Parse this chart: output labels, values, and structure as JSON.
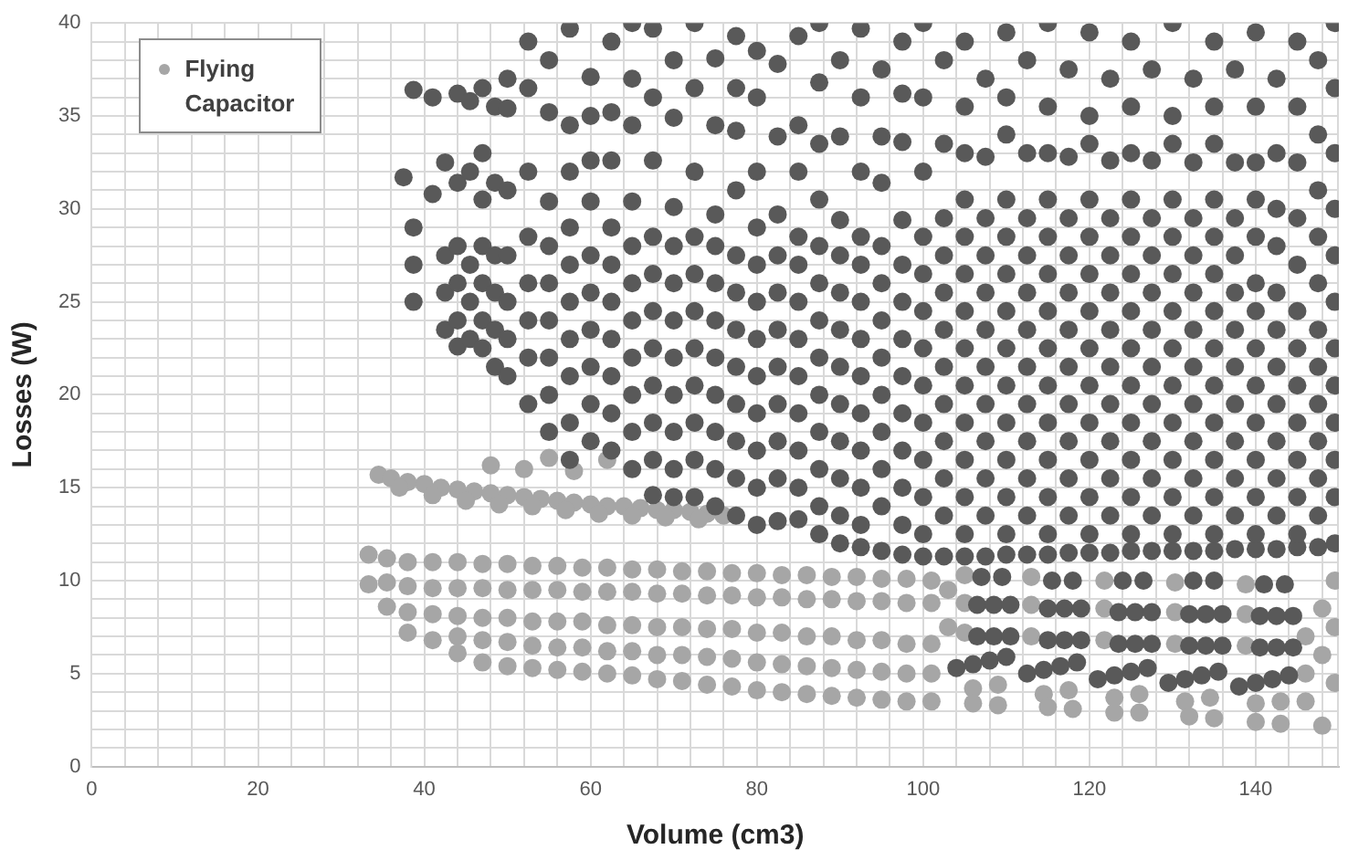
{
  "chart_data": {
    "type": "scatter",
    "xlabel": "Volume (cm3)",
    "ylabel": "Losses (W)",
    "xlim": [
      0,
      150
    ],
    "ylim": [
      0,
      40
    ],
    "xticks": [
      0,
      {
        "value": 4,
        "label": null
      },
      {
        "value": 8,
        "label": null
      },
      {
        "value": 12,
        "label": null
      },
      {
        "value": 16,
        "label": null
      },
      20,
      {
        "value": 24,
        "label": null
      },
      {
        "value": 28,
        "label": null
      },
      {
        "value": 32,
        "label": null
      },
      {
        "value": 36,
        "label": null
      },
      40,
      {
        "value": 44,
        "label": null
      },
      {
        "value": 48,
        "label": null
      },
      {
        "value": 52,
        "label": null
      },
      {
        "value": 56,
        "label": null
      },
      60,
      {
        "value": 64,
        "label": null
      },
      {
        "value": 68,
        "label": null
      },
      {
        "value": 72,
        "label": null
      },
      {
        "value": 76,
        "label": null
      },
      80,
      {
        "value": 84,
        "label": null
      },
      {
        "value": 88,
        "label": null
      },
      {
        "value": 92,
        "label": null
      },
      {
        "value": 96,
        "label": null
      },
      100,
      {
        "value": 104,
        "label": null
      },
      {
        "value": 108,
        "label": null
      },
      {
        "value": 112,
        "label": null
      },
      {
        "value": 116,
        "label": null
      },
      120,
      {
        "value": 124,
        "label": null
      },
      {
        "value": 128,
        "label": null
      },
      {
        "value": 132,
        "label": null
      },
      {
        "value": 136,
        "label": null
      },
      140,
      {
        "value": 144,
        "label": null
      },
      {
        "value": 148,
        "label": null
      }
    ],
    "yticks": [
      0,
      {
        "value": 1,
        "label": null
      },
      {
        "value": 2,
        "label": null
      },
      {
        "value": 3,
        "label": null
      },
      {
        "value": 4,
        "label": null
      },
      5,
      {
        "value": 6,
        "label": null
      },
      {
        "value": 7,
        "label": null
      },
      {
        "value": 8,
        "label": null
      },
      {
        "value": 9,
        "label": null
      },
      10,
      {
        "value": 11,
        "label": null
      },
      {
        "value": 12,
        "label": null
      },
      {
        "value": 13,
        "label": null
      },
      {
        "value": 14,
        "label": null
      },
      15,
      {
        "value": 16,
        "label": null
      },
      {
        "value": 17,
        "label": null
      },
      {
        "value": 18,
        "label": null
      },
      {
        "value": 19,
        "label": null
      },
      20,
      {
        "value": 21,
        "label": null
      },
      {
        "value": 22,
        "label": null
      },
      {
        "value": 23,
        "label": null
      },
      {
        "value": 24,
        "label": null
      },
      25,
      {
        "value": 26,
        "label": null
      },
      {
        "value": 27,
        "label": null
      },
      {
        "value": 28,
        "label": null
      },
      {
        "value": 29,
        "label": null
      },
      30,
      {
        "value": 31,
        "label": null
      },
      {
        "value": 32,
        "label": null
      },
      {
        "value": 33,
        "label": null
      },
      {
        "value": 34,
        "label": null
      },
      35,
      {
        "value": 36,
        "label": null
      },
      {
        "value": 37,
        "label": null
      },
      {
        "value": 38,
        "label": null
      },
      {
        "value": 39,
        "label": null
      },
      40
    ],
    "grid": true,
    "legend": "top left",
    "marker": "circle",
    "series": [
      {
        "name": "Flying Capacitor",
        "color": "#a6a6a6",
        "x": [
          34.5,
          36,
          38,
          40,
          42,
          44,
          46,
          48,
          50,
          52,
          54,
          56,
          58,
          60,
          62,
          64,
          66,
          68,
          70,
          72,
          74,
          76,
          37,
          41,
          45,
          49,
          53,
          57,
          61,
          65,
          69,
          73,
          48,
          52,
          55,
          58,
          62,
          33.3,
          33.3,
          35.5,
          35.5,
          35.5,
          38,
          38,
          38,
          38,
          41,
          41,
          41,
          41,
          44,
          44,
          44,
          44,
          44,
          47,
          47,
          47,
          47,
          47,
          50,
          50,
          50,
          50,
          50,
          53,
          53,
          53,
          53,
          53,
          56,
          56,
          56,
          56,
          56,
          59,
          59,
          59,
          59,
          59,
          62,
          62,
          62,
          62,
          62,
          65,
          65,
          65,
          65,
          65,
          68,
          68,
          68,
          68,
          68,
          71,
          71,
          71,
          71,
          71,
          74,
          74,
          74,
          74,
          74,
          77,
          77,
          77,
          77,
          77,
          80,
          80,
          80,
          80,
          80,
          83,
          83,
          83,
          83,
          83,
          86,
          86,
          86,
          86,
          86,
          89,
          89,
          89,
          89,
          89,
          92,
          92,
          92,
          92,
          92,
          95,
          95,
          95,
          95,
          95,
          98,
          98,
          98,
          98,
          98,
          101,
          101,
          101,
          101,
          101,
          103,
          103,
          105,
          105,
          105,
          106,
          109,
          106,
          109,
          113,
          113,
          113,
          114.5,
          117.5,
          115,
          118,
          121.8,
          121.8,
          121.8,
          123,
          126,
          123,
          126,
          130.3,
          130.3,
          130.3,
          131.5,
          134.5,
          132,
          135,
          138.8,
          138.8,
          138.8,
          140,
          143,
          140,
          143,
          146,
          146,
          146,
          148,
          148,
          148,
          149.5,
          149.5,
          149.5
        ],
        "values": [
          15.7,
          15.5,
          15.3,
          15.2,
          15,
          14.9,
          14.8,
          14.7,
          14.6,
          14.5,
          14.4,
          14.3,
          14.2,
          14.1,
          14,
          14,
          13.9,
          13.8,
          13.8,
          13.7,
          13.6,
          13.5,
          15,
          14.6,
          14.3,
          14.1,
          14,
          13.8,
          13.6,
          13.5,
          13.4,
          13.3,
          16.2,
          16,
          16.6,
          15.9,
          16.5,
          11.4,
          9.8,
          11.2,
          9.9,
          8.6,
          11,
          9.7,
          8.3,
          7.2,
          11,
          9.6,
          8.2,
          6.8,
          11,
          9.6,
          8.1,
          7,
          6.1,
          10.9,
          9.6,
          8,
          6.8,
          5.6,
          10.9,
          9.5,
          8,
          6.7,
          5.4,
          10.8,
          9.5,
          7.8,
          6.5,
          5.3,
          10.8,
          9.5,
          7.8,
          6.4,
          5.2,
          10.7,
          9.4,
          7.8,
          6.4,
          5.1,
          10.7,
          9.4,
          7.6,
          6.2,
          5,
          10.6,
          9.4,
          7.6,
          6.2,
          4.9,
          10.6,
          9.3,
          7.5,
          6,
          4.7,
          10.5,
          9.3,
          7.5,
          6,
          4.6,
          10.5,
          9.2,
          7.4,
          5.9,
          4.4,
          10.4,
          9.2,
          7.4,
          5.8,
          4.3,
          10.4,
          9.1,
          7.2,
          5.6,
          4.1,
          10.3,
          9.1,
          7.2,
          5.5,
          4,
          10.3,
          9,
          7,
          5.4,
          3.9,
          10.2,
          9,
          7,
          5.3,
          3.8,
          10.2,
          8.9,
          6.8,
          5.2,
          3.7,
          10.1,
          8.9,
          6.8,
          5.1,
          3.6,
          10.1,
          8.8,
          6.6,
          5,
          3.5,
          10,
          8.8,
          6.6,
          5,
          3.5,
          9.5,
          7.5,
          7.2,
          8.8,
          10.3,
          4.2,
          4.4,
          3.4,
          3.3,
          7,
          8.7,
          10.2,
          3.9,
          4.1,
          3.2,
          3.1,
          6.8,
          8.5,
          10,
          3.7,
          3.9,
          2.9,
          2.9,
          6.6,
          8.3,
          9.9,
          3.5,
          3.7,
          2.7,
          2.6,
          6.5,
          8.2,
          9.8,
          3.4,
          3.5,
          2.4,
          2.3,
          7,
          5,
          3.5,
          8.5,
          6,
          2.2,
          10,
          7.5,
          4.5
        ]
      },
      {
        "color": "#595959",
        "x": [
          37.5,
          38.7,
          38.7,
          38.7,
          38.7,
          41,
          41,
          42.5,
          42.5,
          42.5,
          42.5,
          44,
          44,
          44,
          44,
          44,
          44,
          45.5,
          45.5,
          45.5,
          45.5,
          45.5,
          47,
          47,
          47,
          47,
          47,
          47,
          47,
          48.5,
          48.5,
          48.5,
          48.5,
          48.5,
          48.5,
          50,
          50,
          50,
          50,
          50,
          50,
          50,
          52.5,
          52.5,
          52.5,
          52.5,
          52.5,
          52.5,
          52.5,
          52.5,
          55,
          55,
          55,
          55,
          55,
          55,
          55,
          55,
          55,
          57.5,
          57.5,
          57.5,
          57.5,
          57.5,
          57.5,
          57.5,
          57.5,
          57.5,
          57.5,
          60,
          60,
          60,
          60,
          60,
          60,
          60,
          60,
          60,
          60,
          62.5,
          62.5,
          62.5,
          62.5,
          62.5,
          62.5,
          62.5,
          62.5,
          62.5,
          62.5,
          65,
          65,
          65,
          65,
          65,
          65,
          65,
          65,
          65,
          65,
          65,
          67.5,
          67.5,
          67.5,
          67.5,
          67.5,
          67.5,
          67.5,
          67.5,
          67.5,
          67.5,
          67.5,
          70,
          70,
          70,
          70,
          70,
          70,
          70,
          70,
          70,
          70,
          70,
          72.5,
          72.5,
          72.5,
          72.5,
          72.5,
          72.5,
          72.5,
          72.5,
          72.5,
          72.5,
          72.5,
          75,
          75,
          75,
          75,
          75,
          75,
          75,
          75,
          75,
          75,
          75,
          77.5,
          77.5,
          77.5,
          77.5,
          77.5,
          77.5,
          77.5,
          77.5,
          77.5,
          77.5,
          77.5,
          77.5,
          80,
          80,
          80,
          80,
          80,
          80,
          80,
          80,
          80,
          80,
          80,
          80,
          82.5,
          82.5,
          82.5,
          82.5,
          82.5,
          82.5,
          82.5,
          82.5,
          82.5,
          82.5,
          82.5,
          85,
          85,
          85,
          85,
          85,
          85,
          85,
          85,
          85,
          85,
          85,
          85,
          87.5,
          87.5,
          87.5,
          87.5,
          87.5,
          87.5,
          87.5,
          87.5,
          87.5,
          87.5,
          87.5,
          87.5,
          87.5,
          90,
          90,
          90,
          90,
          90,
          90,
          90,
          90,
          90,
          90,
          90,
          90,
          92.5,
          92.5,
          92.5,
          92.5,
          92.5,
          92.5,
          92.5,
          92.5,
          92.5,
          92.5,
          92.5,
          92.5,
          92.5,
          95,
          95,
          95,
          95,
          95,
          95,
          95,
          95,
          95,
          95,
          95,
          95,
          97.5,
          97.5,
          97.5,
          97.5,
          97.5,
          97.5,
          97.5,
          97.5,
          97.5,
          97.5,
          97.5,
          97.5,
          97.5,
          100,
          100,
          100,
          100,
          100,
          100,
          100,
          100,
          100,
          100,
          100,
          100,
          100,
          102.5,
          102.5,
          102.5,
          102.5,
          102.5,
          102.5,
          102.5,
          102.5,
          102.5,
          102.5,
          102.5,
          102.5,
          105,
          105,
          105,
          105,
          105,
          105,
          105,
          105,
          105,
          105,
          105,
          105,
          105,
          105,
          107.5,
          107.5,
          107.5,
          107.5,
          107.5,
          107.5,
          107.5,
          107.5,
          107.5,
          107.5,
          107.5,
          107.5,
          110,
          110,
          110,
          110,
          110,
          110,
          110,
          110,
          110,
          110,
          110,
          110,
          110,
          110,
          112.5,
          112.5,
          112.5,
          112.5,
          112.5,
          112.5,
          112.5,
          112.5,
          112.5,
          112.5,
          112.5,
          112.5,
          115,
          115,
          115,
          115,
          115,
          115,
          115,
          115,
          115,
          115,
          115,
          115,
          115,
          115,
          117.5,
          117.5,
          117.5,
          117.5,
          117.5,
          117.5,
          117.5,
          117.5,
          117.5,
          117.5,
          117.5,
          117.5,
          120,
          120,
          120,
          120,
          120,
          120,
          120,
          120,
          120,
          120,
          120,
          120,
          120,
          120,
          122.5,
          122.5,
          122.5,
          122.5,
          122.5,
          122.5,
          122.5,
          122.5,
          122.5,
          122.5,
          122.5,
          122.5,
          125,
          125,
          125,
          125,
          125,
          125,
          125,
          125,
          125,
          125,
          125,
          125,
          125,
          125,
          127.5,
          127.5,
          127.5,
          127.5,
          127.5,
          127.5,
          127.5,
          127.5,
          127.5,
          127.5,
          127.5,
          127.5,
          130,
          130,
          130,
          130,
          130,
          130,
          130,
          130,
          130,
          130,
          130,
          130,
          130,
          130,
          132.5,
          132.5,
          132.5,
          132.5,
          132.5,
          132.5,
          132.5,
          132.5,
          132.5,
          132.5,
          132.5,
          132.5,
          135,
          135,
          135,
          135,
          135,
          135,
          135,
          135,
          135,
          135,
          135,
          135,
          135,
          135,
          137.5,
          137.5,
          137.5,
          137.5,
          137.5,
          137.5,
          137.5,
          137.5,
          137.5,
          137.5,
          137.5,
          137.5,
          140,
          140,
          140,
          140,
          140,
          140,
          140,
          140,
          140,
          140,
          140,
          140,
          140,
          140,
          142.5,
          142.5,
          142.5,
          142.5,
          142.5,
          142.5,
          142.5,
          142.5,
          142.5,
          142.5,
          142.5,
          142.5,
          145,
          145,
          145,
          145,
          145,
          145,
          145,
          145,
          145,
          145,
          145,
          145,
          145,
          147.5,
          147.5,
          147.5,
          147.5,
          147.5,
          147.5,
          147.5,
          147.5,
          147.5,
          147.5,
          147.5,
          147.5,
          149.5,
          149.5,
          149.5,
          149.5,
          149.5,
          149.5,
          149.5,
          149.5,
          149.5,
          149.5,
          149.5,
          149.5,
          104,
          106,
          108,
          110,
          106.5,
          108.5,
          110.5,
          106.5,
          108.5,
          110.5,
          107,
          109.5,
          112.5,
          114.5,
          116.5,
          118.5,
          115,
          117,
          119,
          115,
          117,
          119,
          115.5,
          118,
          121,
          123,
          125,
          127,
          123.5,
          125.5,
          127.5,
          123.5,
          125.5,
          127.5,
          124,
          126.5,
          129.5,
          131.5,
          133.5,
          135.5,
          132,
          134,
          136,
          132,
          134,
          136,
          132.5,
          135,
          138,
          140,
          142,
          144,
          140.5,
          142.5,
          144.5,
          140.5,
          142.5,
          144.5,
          141,
          143.5
        ],
        "values": [
          31.7,
          36.4,
          29,
          27,
          25,
          36,
          30.8,
          32.5,
          27.5,
          25.5,
          23.5,
          36.2,
          31.4,
          28,
          26,
          24,
          22.6,
          35.8,
          32,
          27,
          25,
          23,
          36.5,
          33,
          30.5,
          28,
          26,
          24,
          22.5,
          35.5,
          31.4,
          27.5,
          25.5,
          23.5,
          21.5,
          21,
          23,
          25,
          27.5,
          31,
          35.4,
          37,
          19.5,
          22,
          24,
          26,
          28.5,
          32,
          36.5,
          39,
          18,
          20,
          22,
          24,
          26,
          28,
          30.4,
          35.2,
          38,
          16.5,
          18.5,
          21,
          23,
          25,
          27,
          29,
          32,
          34.5,
          39.7,
          17.5,
          19.5,
          21.5,
          23.5,
          25.5,
          27.5,
          30.4,
          32.6,
          35,
          37.1,
          17,
          19,
          21,
          23,
          25,
          27,
          29,
          32.6,
          35.2,
          39,
          16,
          18,
          20,
          22,
          24,
          26,
          28,
          30.4,
          34.5,
          37,
          40,
          14.6,
          16.5,
          18.5,
          20.5,
          22.5,
          24.5,
          26.5,
          28.5,
          32.6,
          36,
          39.7,
          14.5,
          16,
          18,
          20,
          22,
          24,
          26,
          28,
          30.1,
          34.9,
          38,
          14.5,
          16.5,
          18.5,
          20.5,
          22.5,
          24.5,
          26.5,
          28.5,
          32,
          36.5,
          40,
          14,
          16,
          18,
          20,
          22,
          24,
          26,
          28,
          29.7,
          34.5,
          38.1,
          13.5,
          15.5,
          17.5,
          19.5,
          21.5,
          23.5,
          25.5,
          27.5,
          31,
          34.2,
          36.5,
          39.3,
          13,
          15,
          17,
          19,
          21,
          23,
          25,
          27,
          29,
          32,
          36,
          38.5,
          13.2,
          15.5,
          17.5,
          19.5,
          21.5,
          23.5,
          25.5,
          27.5,
          29.7,
          33.9,
          37.8,
          13.3,
          15,
          17,
          19,
          21,
          23,
          25,
          27,
          28.5,
          32,
          34.5,
          39.3,
          12.5,
          14,
          16,
          18,
          20,
          22,
          24,
          26,
          28,
          30.5,
          33.5,
          36.8,
          40,
          12,
          13.5,
          15.5,
          17.5,
          19.5,
          21.5,
          23.5,
          25.5,
          27.5,
          29.4,
          33.9,
          38,
          11.8,
          13,
          15,
          17,
          19,
          21,
          23,
          25,
          27,
          28.5,
          32,
          36,
          39.7,
          11.6,
          14,
          16,
          18,
          20,
          22,
          24,
          26,
          28,
          31.4,
          33.9,
          37.5,
          11.4,
          13,
          15,
          17,
          19,
          21,
          23,
          25,
          27,
          29.4,
          33.6,
          36.2,
          39,
          11.3,
          12.5,
          14.5,
          16.5,
          18.5,
          20.5,
          22.5,
          24.5,
          26.5,
          28.5,
          32,
          36,
          40,
          11.3,
          13.5,
          15.5,
          17.5,
          19.5,
          21.5,
          23.5,
          25.5,
          27.5,
          29.5,
          33.5,
          38,
          11.3,
          12.5,
          14.5,
          16.5,
          18.5,
          20.5,
          22.5,
          24.5,
          26.5,
          28.5,
          30.5,
          33,
          35.5,
          39,
          11.3,
          13.5,
          15.5,
          17.5,
          19.5,
          21.5,
          23.5,
          25.5,
          27.5,
          29.5,
          32.8,
          37,
          11.4,
          12.5,
          14.5,
          16.5,
          18.5,
          20.5,
          22.5,
          24.5,
          26.5,
          28.5,
          30.5,
          34,
          36,
          39.5,
          11.4,
          13.5,
          15.5,
          17.5,
          19.5,
          21.5,
          23.5,
          25.5,
          27.5,
          29.5,
          33,
          38,
          11.4,
          12.5,
          14.5,
          16.5,
          18.5,
          20.5,
          22.5,
          24.5,
          26.5,
          28.5,
          30.5,
          33,
          35.5,
          40,
          11.5,
          13.5,
          15.5,
          17.5,
          19.5,
          21.5,
          23.5,
          25.5,
          27.5,
          29.5,
          32.8,
          37.5,
          11.5,
          12.5,
          14.5,
          16.5,
          18.5,
          20.5,
          22.5,
          24.5,
          26.5,
          28.5,
          30.5,
          33.5,
          35,
          39.5,
          11.5,
          13.5,
          15.5,
          17.5,
          19.5,
          21.5,
          23.5,
          25.5,
          27.5,
          29.5,
          32.6,
          37,
          11.6,
          12.5,
          14.5,
          16.5,
          18.5,
          20.5,
          22.5,
          24.5,
          26.5,
          28.5,
          30.5,
          33,
          35.5,
          39,
          11.6,
          13.5,
          15.5,
          17.5,
          19.5,
          21.5,
          23.5,
          25.5,
          27.5,
          29.5,
          32.6,
          37.5,
          11.6,
          12.5,
          14.5,
          16.5,
          18.5,
          20.5,
          22.5,
          24.5,
          26.5,
          28.5,
          30.5,
          33.5,
          35,
          40,
          11.6,
          13.5,
          15.5,
          17.5,
          19.5,
          21.5,
          23.5,
          25.5,
          27.5,
          29.5,
          32.5,
          37,
          11.6,
          12.5,
          14.5,
          16.5,
          18.5,
          20.5,
          22.5,
          24.5,
          26.5,
          28.5,
          30.5,
          33.5,
          35.5,
          39,
          11.7,
          13.5,
          15.5,
          17.5,
          19.5,
          21.5,
          23.5,
          25.5,
          27.5,
          29.5,
          32.5,
          37.5,
          11.7,
          12.5,
          14.5,
          16.5,
          18.5,
          20.5,
          22.5,
          24.5,
          26,
          28.5,
          30.5,
          32.5,
          35.5,
          39.5,
          11.7,
          13.5,
          15.5,
          17.5,
          19.5,
          21.5,
          23.5,
          25.5,
          28,
          30,
          33,
          37,
          11.8,
          12.5,
          14.5,
          16.5,
          18.5,
          20.5,
          22.5,
          24.5,
          27,
          29.5,
          32.5,
          35.5,
          39,
          11.8,
          13.5,
          15.5,
          17.5,
          19.5,
          21.5,
          23.5,
          26,
          28.5,
          31,
          34,
          38,
          12,
          14.5,
          16.5,
          18.5,
          20.5,
          22.5,
          25,
          27.5,
          30,
          33,
          36.5,
          40,
          5.3,
          5.5,
          5.7,
          5.9,
          7,
          7,
          7,
          8.7,
          8.7,
          8.7,
          10.2,
          10.2,
          5,
          5.2,
          5.4,
          5.6,
          6.8,
          6.8,
          6.8,
          8.5,
          8.5,
          8.5,
          10,
          10,
          4.7,
          4.9,
          5.1,
          5.3,
          6.6,
          6.6,
          6.6,
          8.3,
          8.3,
          8.3,
          10,
          10,
          4.5,
          4.7,
          4.9,
          5.1,
          6.5,
          6.5,
          6.5,
          8.2,
          8.2,
          8.2,
          10,
          10,
          4.3,
          4.5,
          4.7,
          4.9,
          6.4,
          6.4,
          6.4,
          8.1,
          8.1,
          8.1,
          9.8,
          9.8
        ]
      }
    ]
  }
}
